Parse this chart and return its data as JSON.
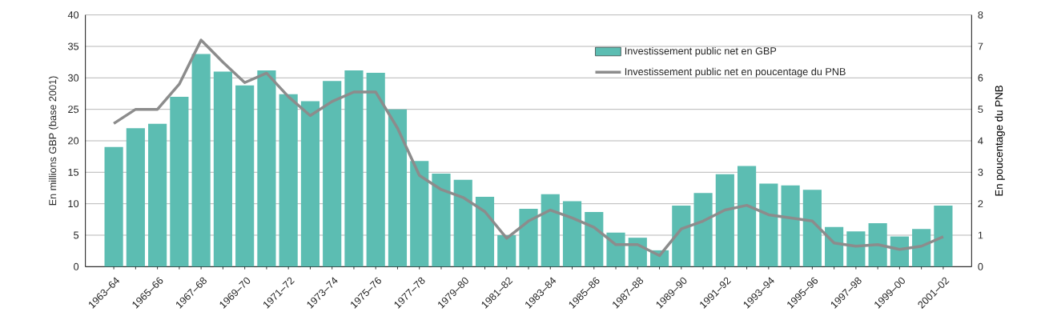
{
  "chart_data": {
    "type": "bar",
    "ylabel": "En millions GBP (base 2001)",
    "y2label": "En poucentage du PNB",
    "categories": [
      "1963–64",
      null,
      "1965–66",
      null,
      "1967–68",
      null,
      "1969–70",
      null,
      "1971–72",
      null,
      "1973–74",
      null,
      "1975–76",
      null,
      "1977–78",
      null,
      "1979–80",
      null,
      "1981–82",
      null,
      "1983–84",
      null,
      "1985–86",
      null,
      "1987–88",
      null,
      "1989–90",
      null,
      "1991–92",
      null,
      "1993–94",
      null,
      "1995–96",
      null,
      "1997–98",
      null,
      "1999–00",
      null,
      "2001–02"
    ],
    "series": [
      {
        "name": "Investissement public net en GBP",
        "color": "#5cbdb2",
        "values": [
          19,
          22,
          22.7,
          27,
          33.8,
          31,
          28.8,
          31.2,
          27.4,
          26.3,
          29.5,
          31.2,
          30.8,
          25,
          16.8,
          14.8,
          13.8,
          11.1,
          5.0,
          9.2,
          11.5,
          10.4,
          8.7,
          5.4,
          4.6,
          2.6,
          9.7,
          11.7,
          14.7,
          16,
          13.2,
          12.9,
          12.2,
          6.3,
          5.6,
          6.9,
          4.8,
          6.0,
          9.7
        ]
      },
      {
        "name": "Investissement public net en poucentage du PNB",
        "type": "line",
        "axis": "y2",
        "color": "#8c8c8c",
        "line_style": "solid",
        "values": [
          4.55,
          5.0,
          5.0,
          5.8,
          7.2,
          6.5,
          5.85,
          6.15,
          5.4,
          4.8,
          5.25,
          5.55,
          5.55,
          4.4,
          2.9,
          2.45,
          2.2,
          1.75,
          0.9,
          1.45,
          1.8,
          1.55,
          1.25,
          0.7,
          0.7,
          0.35,
          1.2,
          1.45,
          1.8,
          1.95,
          1.65,
          1.55,
          1.45,
          0.75,
          0.65,
          0.7,
          0.55,
          0.65,
          0.95
        ]
      }
    ],
    "ylim": [
      0,
      40
    ],
    "yticks": [
      0,
      5,
      10,
      15,
      20,
      25,
      30,
      35,
      40
    ],
    "y2lim": [
      0,
      8
    ],
    "y2ticks": [
      0,
      1,
      2,
      3,
      4,
      5,
      6,
      7,
      8
    ],
    "grid": "y",
    "legend": "top right"
  }
}
